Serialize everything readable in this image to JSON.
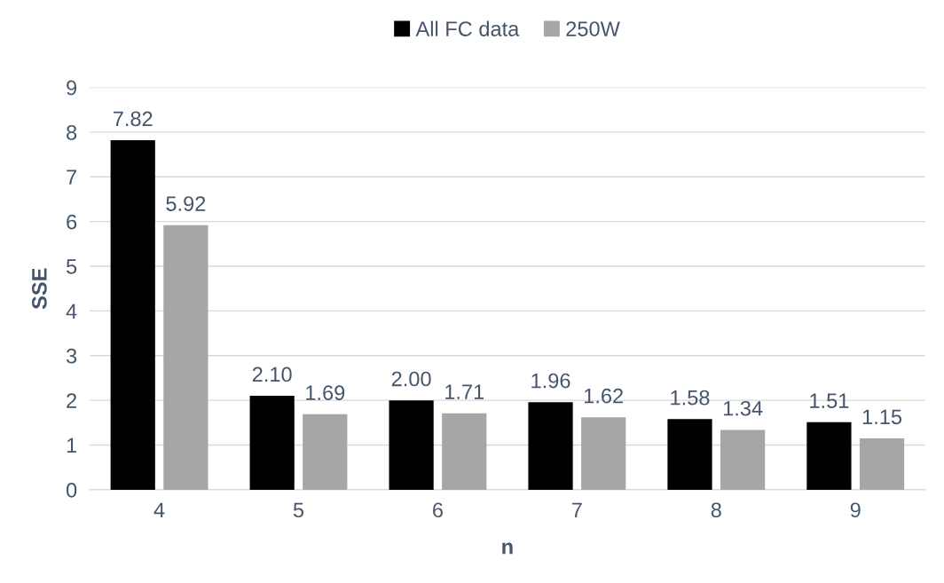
{
  "chart_data": {
    "type": "bar",
    "xlabel": "n",
    "ylabel": "SSE",
    "categories": [
      "4",
      "5",
      "6",
      "7",
      "8",
      "9"
    ],
    "series": [
      {
        "name": "All FC data",
        "color": "#000000",
        "values": [
          7.82,
          2.1,
          2.0,
          1.96,
          1.58,
          1.51
        ],
        "value_labels": [
          "7.82",
          "2.10",
          "2.00",
          "1.96",
          "1.58",
          "1.51"
        ]
      },
      {
        "name": "250W",
        "color": "#a6a6a6",
        "values": [
          5.92,
          1.69,
          1.71,
          1.62,
          1.34,
          1.15
        ],
        "value_labels": [
          "5.92",
          "1.69",
          "1.71",
          "1.62",
          "1.34",
          "1.15"
        ]
      }
    ],
    "ylim": [
      0,
      9
    ],
    "yticks": [
      0,
      1,
      2,
      3,
      4,
      5,
      6,
      7,
      8,
      9
    ],
    "grid": "y",
    "legend": "top"
  }
}
